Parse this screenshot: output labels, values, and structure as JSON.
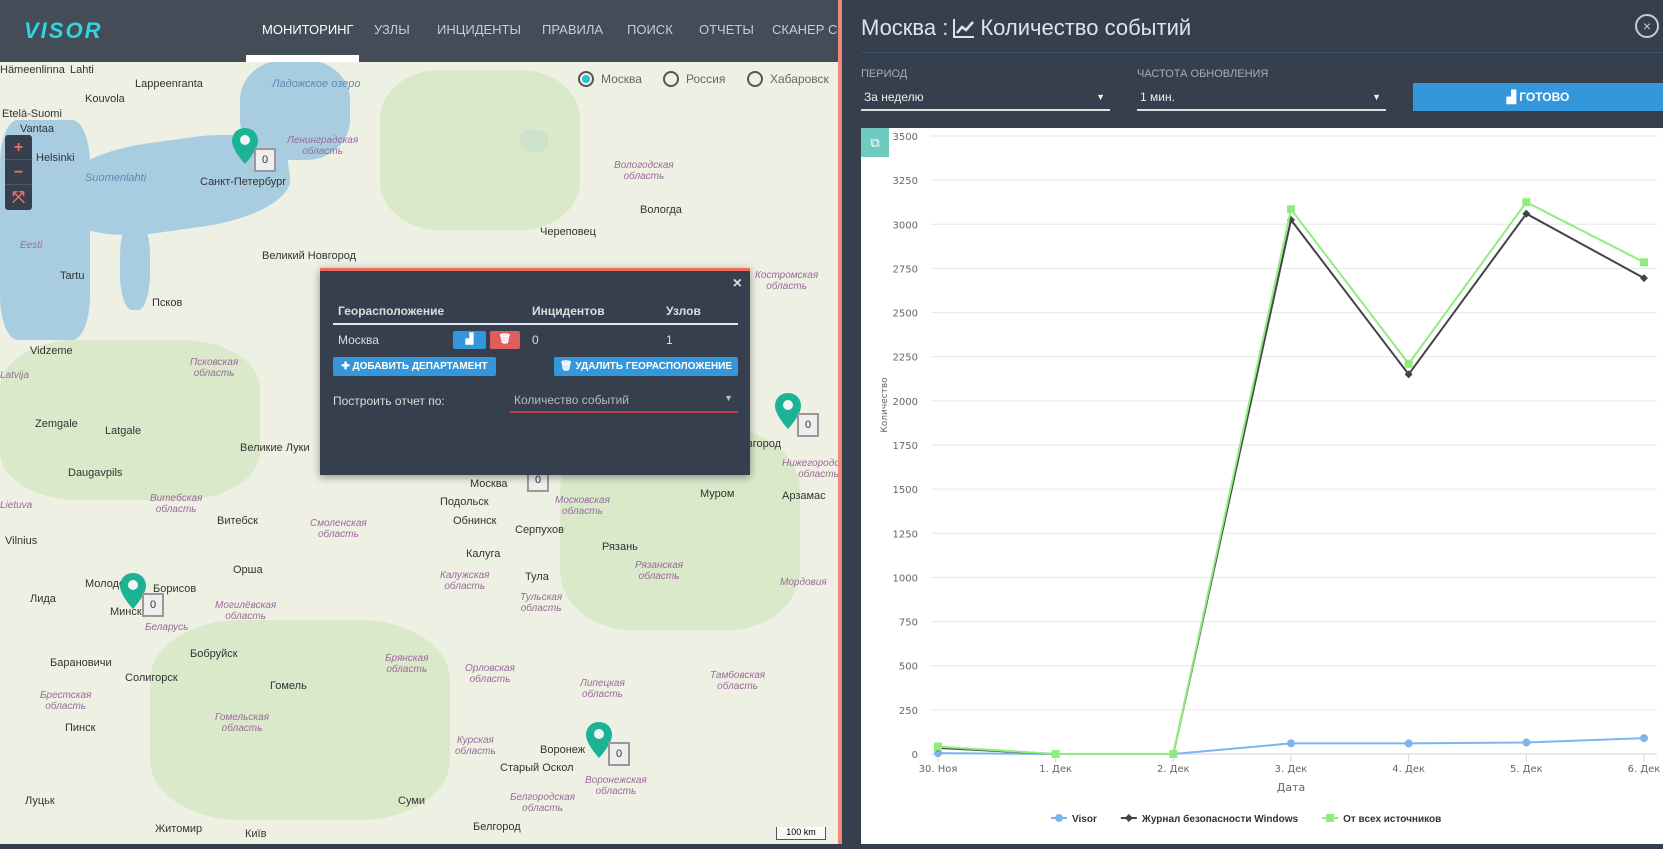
{
  "nav": {
    "logo": "VISOR",
    "items": [
      {
        "label": "МОНИТОРИНГ",
        "active": true
      },
      {
        "label": "УЗЛЫ"
      },
      {
        "label": "ИНЦИДЕНТЫ"
      },
      {
        "label": "ПРАВИЛА"
      },
      {
        "label": "ПОИСК"
      },
      {
        "label": "ОТЧЕТЫ"
      },
      {
        "label": "СКАНЕР СЕ"
      }
    ]
  },
  "map": {
    "regions": [
      {
        "label": "Москва",
        "selected": true
      },
      {
        "label": "Россия",
        "selected": false
      },
      {
        "label": "Хабаровск",
        "selected": false
      }
    ],
    "zoom": {
      "in": "+",
      "out": "−",
      "fit": "⤧"
    },
    "labels": [
      "Hämeenlinna",
      "Lahti",
      "Lappeenranta",
      "Kouvola",
      "Etelä-Suomi",
      "Vantaa",
      "Helsinki",
      "Suomenlahti",
      "Eesti",
      "Tartu",
      "Vidzeme",
      "Latvija",
      "Zemgale",
      "Latgale",
      "Daugavpils",
      "Lietuva",
      "Vilnius",
      "Лида",
      "Молодечно",
      "Борисов",
      "Беларусь",
      "Барановичи",
      "Солигорск",
      "Бобруйск",
      "Гомель",
      "Пинск",
      "Луцьк",
      "Житомир",
      "Київ",
      "Суми",
      "Белгород",
      "Старый Оскол",
      "Санкт-Петербург",
      "Ладожское озеро",
      "Ленинградская область",
      "Вологодская область",
      "Вологда",
      "Череповец",
      "Великий Новгород",
      "Псков",
      "Псковская область",
      "Великие Луки",
      "Витебск",
      "Орша",
      "Смоленская область",
      "Обнинск",
      "Подольск",
      "Москва",
      "Московская область",
      "Серпухов",
      "Калуга",
      "Тула",
      "Рязань",
      "Муром",
      "Арзамас",
      "Нижний Новгород",
      "Нижегородская область",
      "Костромская область",
      "Калужская область",
      "Тульская область",
      "Рязанская область",
      "Брянская область",
      "Орловская область",
      "Липецкая область",
      "Тамбовская область",
      "Курская область",
      "Воронеж",
      "Воронежская область",
      "Белгородская область",
      "Мордовия",
      "Могилёвская область",
      "Гомельская область",
      "Брестская область",
      "Витебская область"
    ],
    "markers": [
      {
        "city": "Санкт-Петербург",
        "count": "0"
      },
      {
        "city": "Нижний Новгород",
        "count": "0"
      },
      {
        "city": "Минск",
        "count": "0"
      },
      {
        "city": "Воронеж",
        "count": "0"
      },
      {
        "city": "Москва",
        "count": "0"
      }
    ],
    "scale": "100 km",
    "marker_color": "#1ab394"
  },
  "popup": {
    "close": "×",
    "headers": [
      "Георасположение",
      "Инцидентов",
      "Узлов"
    ],
    "row": {
      "location": "Москва",
      "incidents": "0",
      "nodes": "1"
    },
    "add_department": "ДОБАВИТЬ ДЕПАРТАМЕНТ",
    "delete_location": "УДАЛИТЬ ГЕОРАСПОЛОЖЕНИЕ",
    "report_label": "Построить отчет по:",
    "report_value": "Количество событий"
  },
  "panel": {
    "title_city": "Москва :",
    "title_metric": "Количество событий",
    "period_label": "ПЕРИОД",
    "period_value": "За неделю",
    "refresh_label": "ЧАСТОТА ОБНОВЛЕНИЯ",
    "refresh_value": "1 мин.",
    "done": "ГОТОВО",
    "close": "×"
  },
  "chart_data": {
    "type": "line",
    "xlabel": "Дата",
    "ylabel": "Количество",
    "categories": [
      "30. Ноя",
      "1. Дек",
      "2. Дек",
      "3. Дек",
      "4. Дек",
      "5. Дек",
      "6. Дек"
    ],
    "ylim": [
      0,
      3500
    ],
    "yticks": [
      0,
      250,
      500,
      750,
      1000,
      1250,
      1500,
      1750,
      2000,
      2250,
      2500,
      2750,
      3000,
      3250,
      3500
    ],
    "grid": true,
    "legend": "bottom",
    "series": [
      {
        "name": "Visor",
        "color": "#7cb5ec",
        "marker": "circle",
        "values": [
          5,
          0,
          0,
          60,
          60,
          65,
          90
        ]
      },
      {
        "name": "Журнал безопасности Windows",
        "color": "#434348",
        "marker": "diamond",
        "values": [
          35,
          0,
          0,
          3025,
          2150,
          3060,
          2695
        ]
      },
      {
        "name": "От всех источников",
        "color": "#90ed7d",
        "marker": "square",
        "values": [
          42,
          0,
          0,
          3085,
          2210,
          3125,
          2785
        ]
      }
    ]
  }
}
